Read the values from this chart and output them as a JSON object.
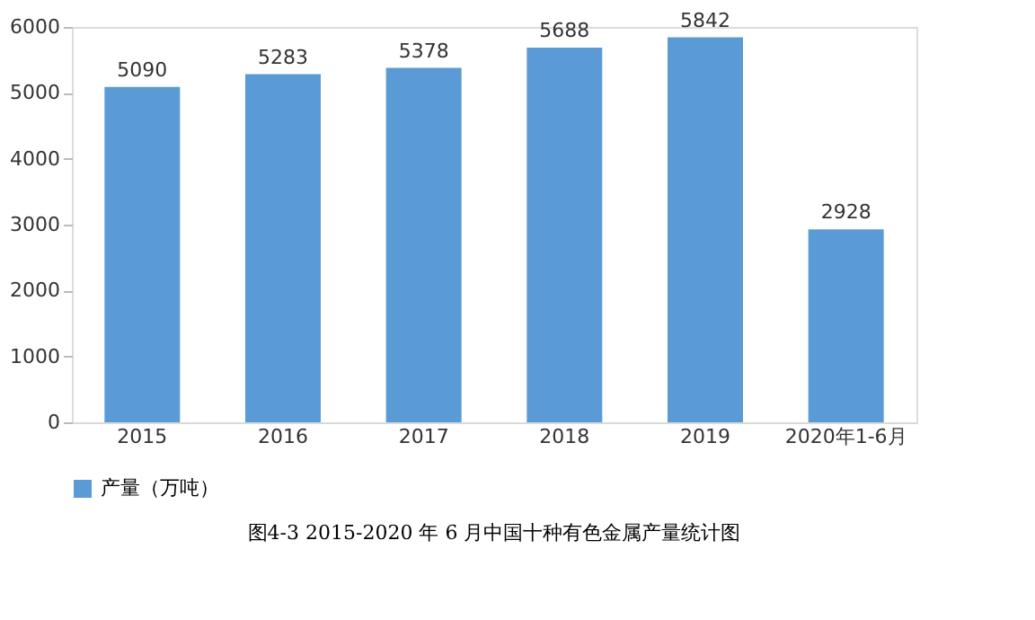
{
  "chart_data": {
    "type": "bar",
    "title": "图4-3 2015-2020 年 6 月中国十种有色金属产量统计图",
    "categories": [
      "2015",
      "2016",
      "2017",
      "2018",
      "2019",
      "2020年1-6月"
    ],
    "series": [
      {
        "name": "产量（万吨）",
        "color": "#5b9bd5",
        "values": [
          5090,
          5283,
          5378,
          5688,
          5842,
          2928
        ]
      }
    ],
    "ylim": [
      0,
      6000
    ],
    "yticks": [
      0,
      1000,
      2000,
      3000,
      4000,
      5000,
      6000
    ],
    "data_labels": true,
    "legend": "bottom",
    "grid": false
  }
}
